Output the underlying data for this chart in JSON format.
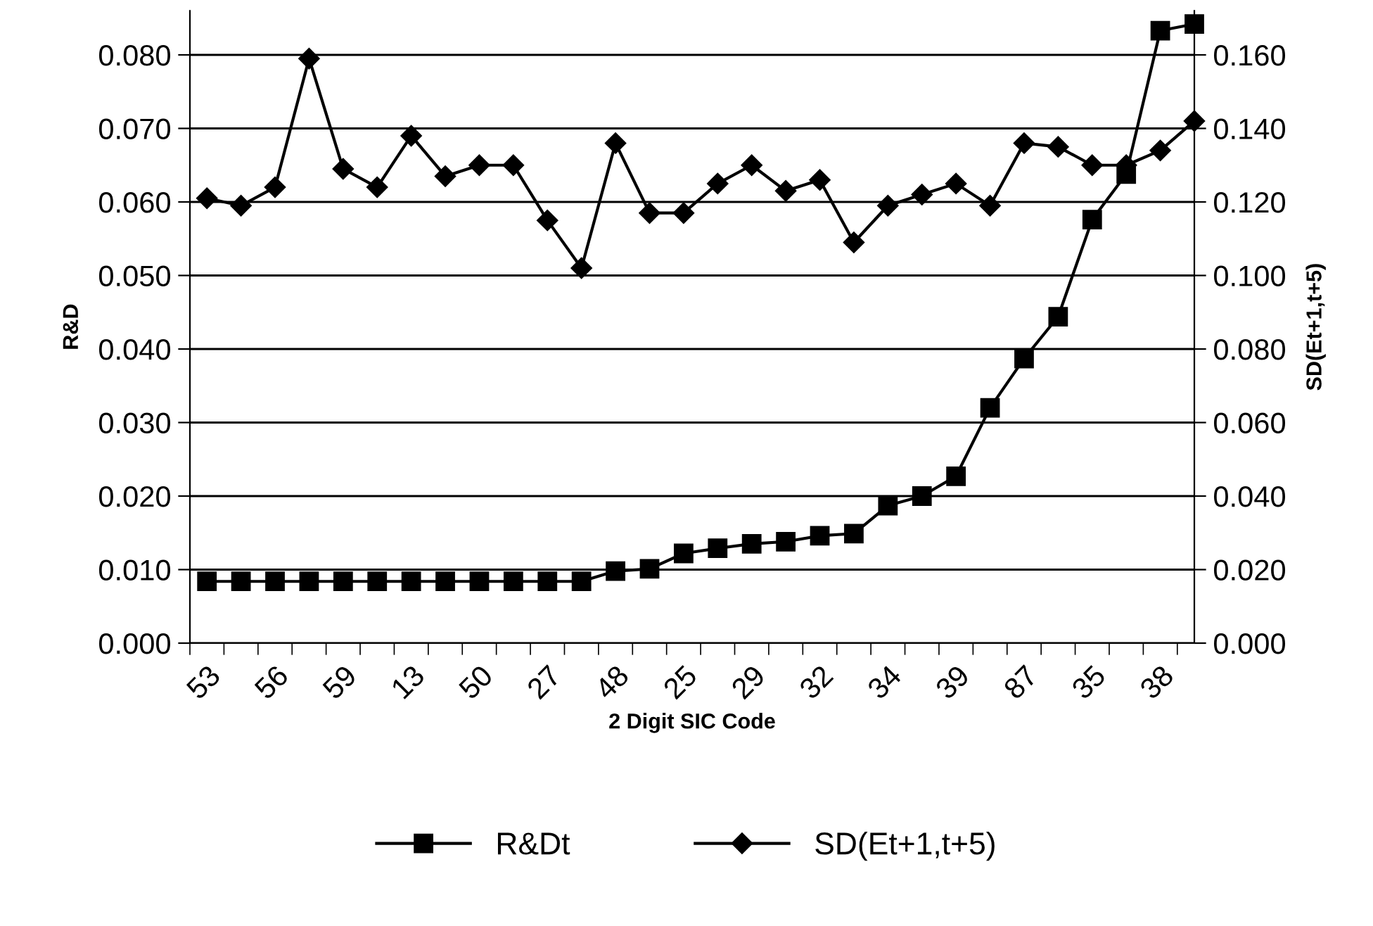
{
  "chart_data": {
    "type": "line",
    "xlabel": "2 Digit SIC Code",
    "ylabel": "R&D",
    "y2label": "SD(Et+1,t+5)",
    "categories": [
      "53",
      null,
      "56",
      null,
      "59",
      null,
      "13",
      null,
      "50",
      null,
      "27",
      null,
      "48",
      null,
      "25",
      null,
      "29",
      null,
      "32",
      null,
      "34",
      null,
      "39",
      null,
      "87",
      null,
      "35",
      null,
      "38",
      null
    ],
    "series": [
      {
        "name": "R&Dt",
        "color": "#000000",
        "marker": "square",
        "values": [
          0.0084,
          0.0084,
          0.0084,
          0.0084,
          0.0084,
          0.0084,
          0.0084,
          0.0084,
          0.0084,
          0.0084,
          0.0084,
          0.0084,
          0.0098,
          0.0101,
          0.0122,
          0.0129,
          0.0135,
          0.0138,
          0.0146,
          0.0149,
          0.0187,
          0.02,
          0.0227,
          0.032,
          0.0387,
          0.0444,
          0.0576,
          0.0638,
          0.0833,
          0.0842
        ]
      },
      {
        "name": "SD(Et+1,t+5)",
        "color": "#000000",
        "marker": "diamond",
        "axis": "y2",
        "values": [
          0.121,
          0.119,
          0.124,
          0.159,
          0.129,
          0.124,
          0.138,
          0.127,
          0.13,
          0.13,
          0.115,
          0.102,
          0.136,
          0.117,
          0.117,
          0.125,
          0.13,
          0.123,
          0.126,
          0.109,
          0.119,
          0.122,
          0.125,
          0.119,
          0.136,
          0.135,
          0.13,
          0.13,
          0.134,
          0.142
        ]
      }
    ],
    "ylim": [
      0,
      0.086
    ],
    "yticks": [
      {
        "value": 0,
        "label": "0.000"
      },
      {
        "value": 0.01,
        "label": "0.010"
      },
      {
        "value": 0.02,
        "label": "0.020"
      },
      {
        "value": 0.03,
        "label": "0.030"
      },
      {
        "value": 0.04,
        "label": "0.040"
      },
      {
        "value": 0.05,
        "label": "0.050"
      },
      {
        "value": 0.06,
        "label": "0.060"
      },
      {
        "value": 0.07,
        "label": "0.070"
      },
      {
        "value": 0.08,
        "label": "0.080"
      }
    ],
    "y2lim": [
      0,
      0.172
    ],
    "y2ticks": [
      {
        "value": 0,
        "label": "0.000"
      },
      {
        "value": 0.02,
        "label": "0.020"
      },
      {
        "value": 0.04,
        "label": "0.040"
      },
      {
        "value": 0.06,
        "label": "0.060"
      },
      {
        "value": 0.08,
        "label": "0.080"
      },
      {
        "value": 0.1,
        "label": "0.100"
      },
      {
        "value": 0.12,
        "label": "0.120"
      },
      {
        "value": 0.14,
        "label": "0.140"
      },
      {
        "value": 0.16,
        "label": "0.160"
      }
    ],
    "grid": "y",
    "legend": "bottom",
    "line_style": "solid"
  }
}
